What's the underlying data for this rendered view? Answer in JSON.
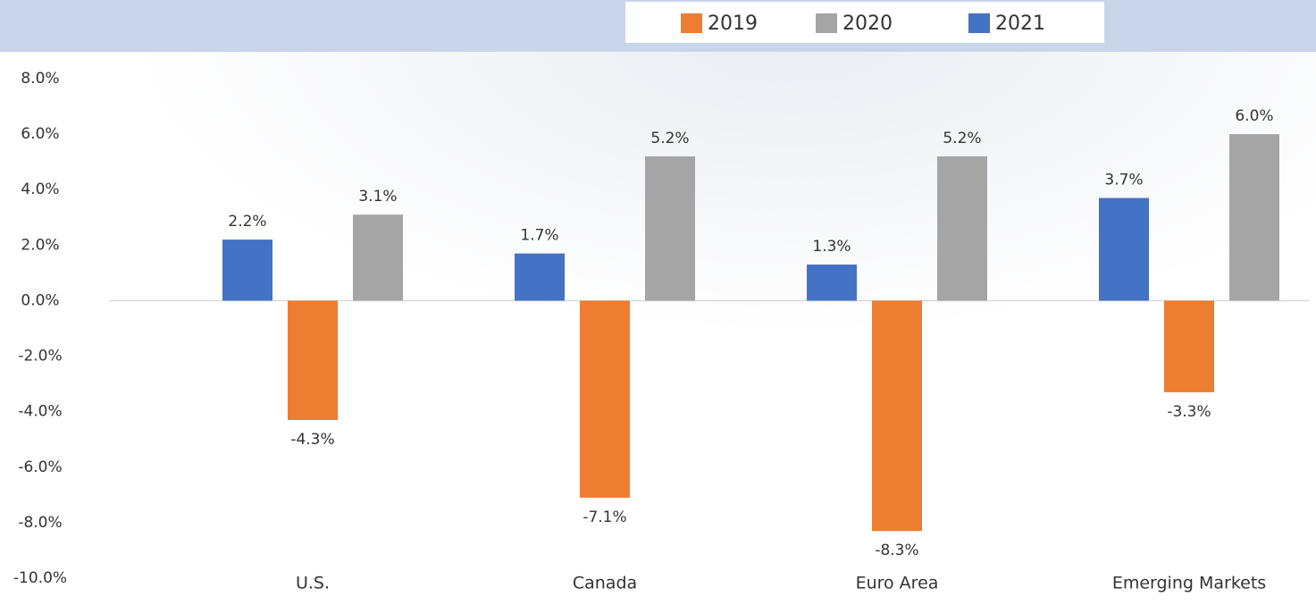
{
  "chart_data": {
    "type": "bar",
    "categories": [
      "U.S.",
      "Canada",
      "Euro Area",
      "Emerging Markets"
    ],
    "series": [
      {
        "name": "2019",
        "color": "#ED7D31",
        "values": [
          -4.3,
          -7.1,
          -8.3,
          -3.3
        ],
        "value_labels": [
          "-4.3%",
          "-7.1%",
          "-8.3%",
          "-3.3%"
        ]
      },
      {
        "name": "2020",
        "color": "#A5A5A5",
        "values": [
          3.1,
          5.2,
          5.2,
          6.0
        ],
        "value_labels": [
          "3.1%",
          "5.2%",
          "5.2%",
          "6.0%"
        ]
      },
      {
        "name": "2021",
        "color": "#4472C4",
        "values": [
          2.2,
          1.7,
          1.3,
          3.7
        ],
        "value_labels": [
          "2.2%",
          "1.7%",
          "1.3%",
          "3.7%"
        ]
      }
    ],
    "ylim": [
      -10,
      8
    ],
    "yticks": [
      {
        "value": -10,
        "label": "-10.0%"
      },
      {
        "value": -8,
        "label": "-8.0%"
      },
      {
        "value": -6,
        "label": "-6.0%"
      },
      {
        "value": -4,
        "label": "-4.0%"
      },
      {
        "value": -2,
        "label": "-2.0%"
      },
      {
        "value": 0,
        "label": "0.0%"
      },
      {
        "value": 2,
        "label": "2.0%"
      },
      {
        "value": 4,
        "label": "4.0%"
      },
      {
        "value": 6,
        "label": "6.0%"
      },
      {
        "value": 8,
        "label": "8.0%"
      }
    ],
    "grid": false
  }
}
